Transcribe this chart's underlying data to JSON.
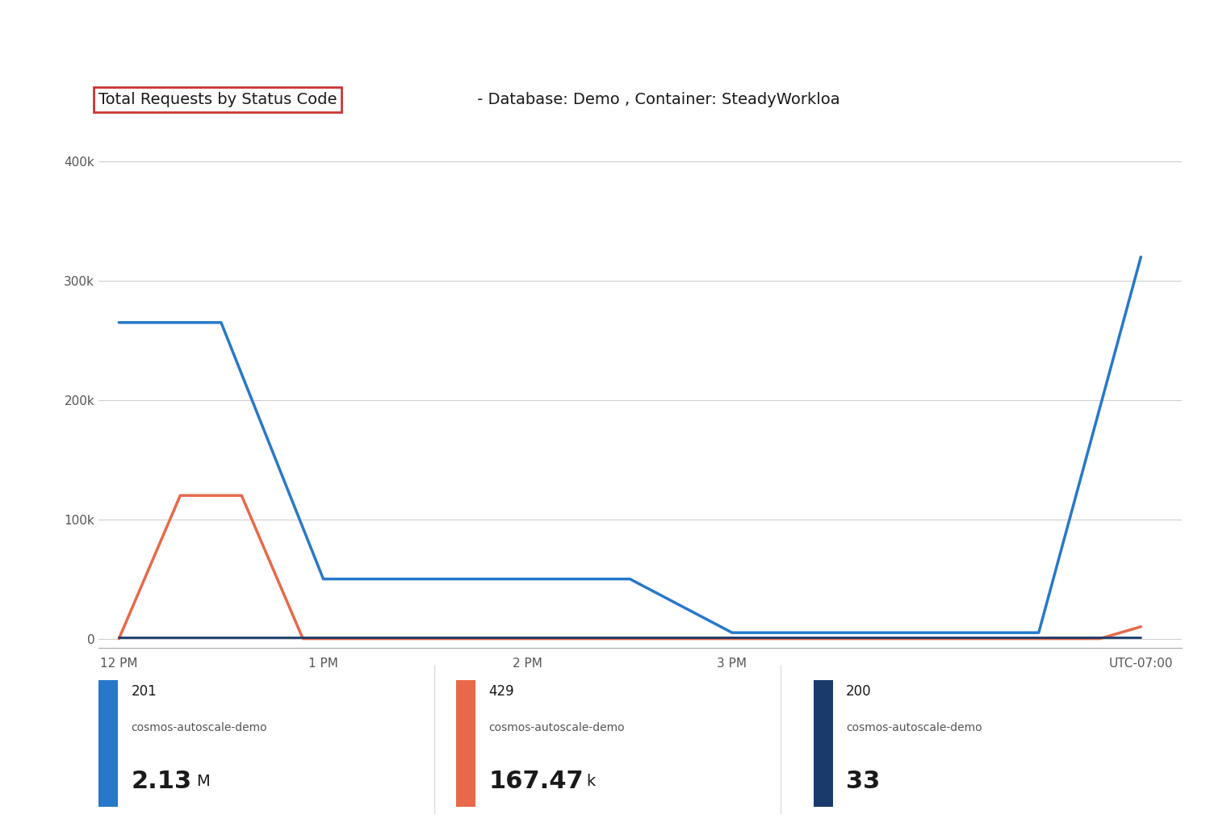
{
  "title_highlighted": "Total Requests by Status Code",
  "title_rest": " - Database: Demo , Container: SteadyWorkloa",
  "bg_color": "#ffffff",
  "plot_bg_color": "#ffffff",
  "grid_color": "#d0d0d0",
  "x_ticks_labels": [
    "12 PM",
    "1 PM",
    "2 PM",
    "3 PM",
    "UTC-07:00"
  ],
  "y_ticks_labels": [
    "0",
    "100k",
    "200k",
    "300k",
    "400k"
  ],
  "y_max": 400000,
  "series": [
    {
      "label": "201",
      "sublabel": "cosmos-autoscale-demo",
      "value_text": "2.13 M",
      "color": "#2778c9",
      "linewidth": 2.5,
      "x": [
        0,
        0.5,
        1.0,
        1.5,
        2.0,
        2.5,
        3.0,
        3.5,
        4.0,
        4.5,
        5.0
      ],
      "y": [
        265000,
        265000,
        50000,
        50000,
        50000,
        50000,
        5000,
        5000,
        5000,
        5000,
        320000
      ]
    },
    {
      "label": "429",
      "sublabel": "cosmos-autoscale-demo",
      "value_text": "167.47 k",
      "color": "#e8694a",
      "linewidth": 2.5,
      "x": [
        0,
        0.3,
        0.6,
        0.9,
        4.8,
        5.0
      ],
      "y": [
        0,
        120000,
        120000,
        0,
        0,
        10000
      ]
    },
    {
      "label": "200",
      "sublabel": "cosmos-autoscale-demo",
      "value_text": "33",
      "color": "#1a3a6b",
      "linewidth": 2.0,
      "x": [
        0,
        5.0
      ],
      "y": [
        1000,
        1000
      ]
    }
  ],
  "x_tick_positions": [
    0,
    1.0,
    2.0,
    3.0,
    5.0
  ],
  "title_fontsize": 14,
  "axis_fontsize": 11,
  "legend_fontsize": 11
}
